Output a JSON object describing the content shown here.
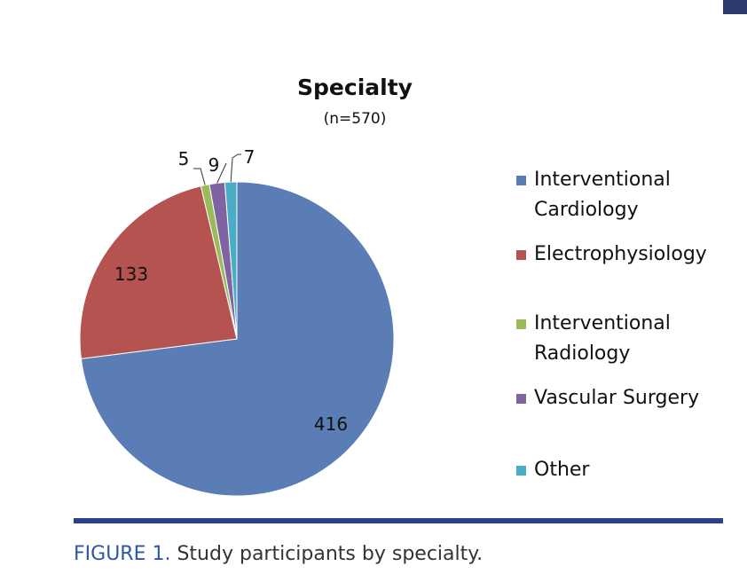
{
  "chart_data": {
    "type": "pie",
    "title": "Specialty",
    "subtitle": "(n=570)",
    "start_angle": "12 o'clock",
    "direction": "clockwise",
    "legend_position": "right",
    "slices": [
      {
        "label": "Interventional Cardiology",
        "legend_lines": [
          "Interventional",
          "Cardiology"
        ],
        "value": 416,
        "color": "#5a7db6"
      },
      {
        "label": "Electrophysiology",
        "legend_lines": [
          "Electrophysiology"
        ],
        "value": 133,
        "color": "#b4534f"
      },
      {
        "label": "Interventional Radiology",
        "legend_lines": [
          "Interventional",
          "Radiology"
        ],
        "value": 5,
        "color": "#9bbb59"
      },
      {
        "label": "Vascular Surgery",
        "legend_lines": [
          "Vascular Surgery"
        ],
        "value": 9,
        "color": "#8064a2"
      },
      {
        "label": "Other",
        "legend_lines": [
          "Other"
        ],
        "value": 7,
        "color": "#4bacc6"
      }
    ]
  },
  "caption": {
    "figure_label": "FIGURE 1.",
    "text": " Study participants by specialty."
  }
}
